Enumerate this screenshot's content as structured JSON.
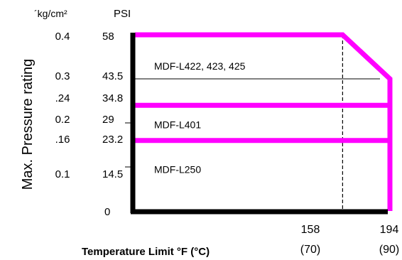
{
  "chart_data": {
    "type": "area",
    "title": "",
    "ylabel": "Max. Pressure rating",
    "xlabel": "Temperature Limit  °F  (°C)",
    "y_units": [
      "´kg/cm²",
      "PSI"
    ],
    "y_ticks_kg": [
      "0.4",
      "0.3",
      ".24",
      "0.2",
      ".16",
      "0.1"
    ],
    "y_ticks_psi": [
      "58",
      "43.5",
      "34.8",
      "29",
      "23.2",
      "14.5",
      "0"
    ],
    "x_ticks": [
      {
        "f": "158",
        "c": "(70)"
      },
      {
        "f": "194",
        "c": "(90)"
      }
    ],
    "ylim_psi": [
      0,
      58
    ],
    "xlim_f": [
      0,
      194
    ],
    "series_color": "#ff00ff",
    "axis_color": "#000000",
    "boundary": [
      {
        "x": 0,
        "y": 58
      },
      {
        "x": 158,
        "y": 58
      },
      {
        "x": 194,
        "y": 43.5
      },
      {
        "x": 194,
        "y": 0
      }
    ],
    "dividers_psi": [
      34.8,
      23.2
    ],
    "reference_lines": [
      {
        "orientation": "horizontal",
        "y_psi": 43.5,
        "style": "solid"
      },
      {
        "orientation": "vertical",
        "x_f": 158,
        "style": "dashed"
      }
    ],
    "regions": [
      {
        "label": "MDF-L422, 423, 425",
        "y_psi": 47.5
      },
      {
        "label": "MDF-L401",
        "y_psi": 28.2
      },
      {
        "label": "MDF-L250",
        "y_psi": 13.5
      }
    ]
  }
}
